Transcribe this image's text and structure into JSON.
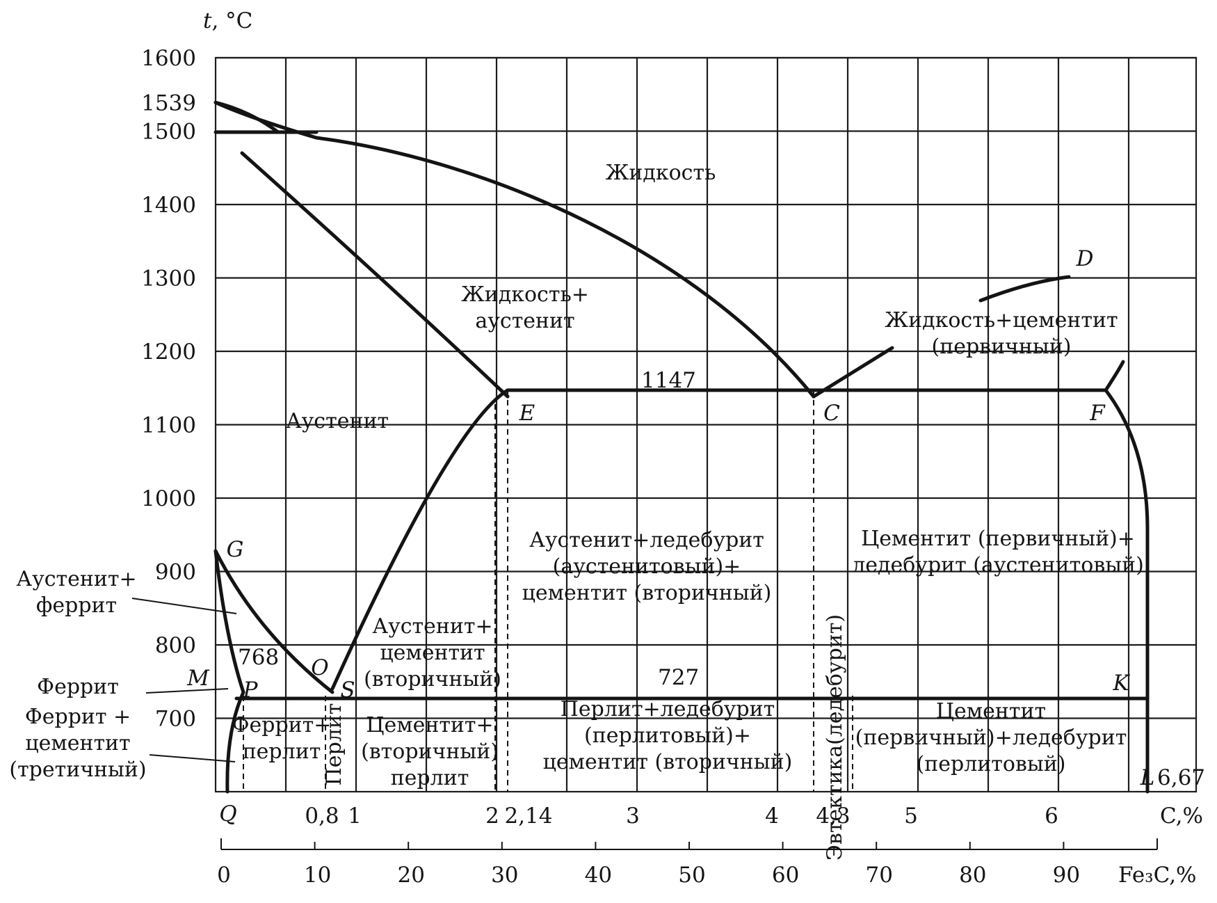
{
  "chart_data": {
    "type": "phase-diagram",
    "y_axis": {
      "label": "t, °C",
      "ticks": [
        1600,
        1539,
        1500,
        1400,
        1300,
        1200,
        1100,
        1000,
        900,
        800,
        700
      ],
      "ylim": [
        600,
        1600
      ]
    },
    "x_axis_carbon": {
      "label": "C,%",
      "ticks": [
        "0,8",
        "1",
        "2",
        "2,14",
        "3",
        "4",
        "4,3",
        "5",
        "6",
        "6,67"
      ],
      "xlim": [
        0,
        6.67
      ]
    },
    "x_axis_fe3c": {
      "label": "Fe₃C,%",
      "ticks": [
        "0",
        "10",
        "20",
        "30",
        "40",
        "50",
        "60",
        "70",
        "80",
        "90"
      ]
    },
    "isotherms": [
      "1147",
      "727",
      "768"
    ],
    "points": [
      {
        "name": "G",
        "c": 0,
        "t": 911
      },
      {
        "name": "M",
        "c": 0,
        "t": 768
      },
      {
        "name": "O",
        "c": 0.5,
        "t": 768
      },
      {
        "name": "P",
        "c": 0.02,
        "t": 727
      },
      {
        "name": "S",
        "c": 0.8,
        "t": 727
      },
      {
        "name": "Q",
        "c": 0.006,
        "t": 600
      },
      {
        "name": "E",
        "c": 2.14,
        "t": 1147
      },
      {
        "name": "C",
        "c": 4.3,
        "t": 1147
      },
      {
        "name": "F",
        "c": 6.67,
        "t": 1147
      },
      {
        "name": "K",
        "c": 6.67,
        "t": 727
      },
      {
        "name": "D",
        "c": 6.67,
        "t": 1300
      },
      {
        "name": "L",
        "c": 6.67,
        "t": 600
      }
    ],
    "regions": [
      "Жидкость",
      [
        "Жидкость+",
        "аустенит"
      ],
      [
        "Жидкость+цементит",
        "(первичный)"
      ],
      "Аустенит",
      [
        "Аустенит+",
        "феррит"
      ],
      [
        "Аустенит+",
        "цементит",
        "(вторичный)"
      ],
      [
        "Аустенит+ледебурит",
        "(аустенитовый)+",
        "цементит (вторичный)"
      ],
      [
        "Цементит (первичный)+",
        "ледебурит (аустенитовый)"
      ],
      "Феррит",
      [
        "Феррит +",
        "цементит",
        "(третичный)"
      ],
      [
        "Феррит+",
        "перлит"
      ],
      "Перлит",
      [
        "Цементит+",
        "(вторичный)",
        "перлит"
      ],
      [
        "Перлит+ледебурит",
        "(перлитовый)+",
        "цементит (вторичный)"
      ],
      "Эвтектика(ледебурит)",
      [
        "Цементит",
        "(первичный)+ледебурит",
        "(перлитовый)"
      ]
    ]
  }
}
